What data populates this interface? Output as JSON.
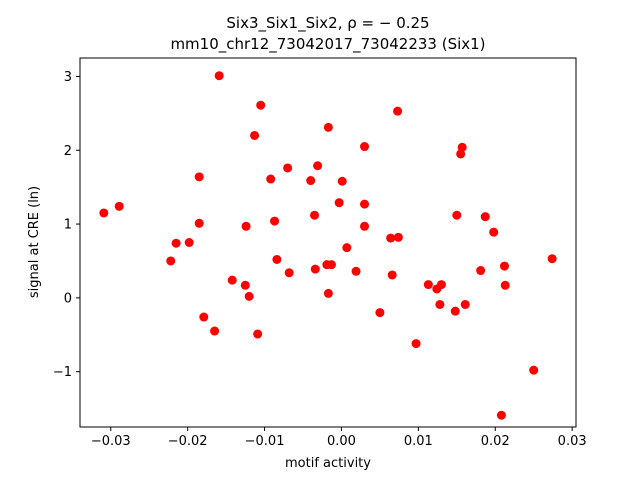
{
  "chart_data": {
    "type": "scatter",
    "title_line1": "Six3_Six1_Six2, ρ = − 0.25",
    "title_line2": "mm10_chr12_73042017_73042233 (Six1)",
    "xlabel": "motif activity",
    "ylabel": "signal at CRE (ln)",
    "xlim": [
      -0.034,
      0.0305
    ],
    "ylim": [
      -1.75,
      3.25
    ],
    "xticks": [
      -0.03,
      -0.02,
      -0.01,
      0.0,
      0.01,
      0.02,
      0.03
    ],
    "xtick_labels": [
      "−0.03",
      "−0.02",
      "−0.01",
      "0.00",
      "0.01",
      "0.02",
      "0.03"
    ],
    "yticks": [
      -1,
      0,
      1,
      2,
      3
    ],
    "ytick_labels": [
      "−1",
      "0",
      "1",
      "2",
      "3"
    ],
    "grid": false,
    "marker_color": "#ff0000",
    "points": [
      {
        "x": -0.0309,
        "y": 1.15
      },
      {
        "x": -0.0289,
        "y": 1.24
      },
      {
        "x": -0.0222,
        "y": 0.5
      },
      {
        "x": -0.0215,
        "y": 0.74
      },
      {
        "x": -0.0198,
        "y": 0.75
      },
      {
        "x": -0.0185,
        "y": 1.64
      },
      {
        "x": -0.0185,
        "y": 1.01
      },
      {
        "x": -0.0179,
        "y": -0.26
      },
      {
        "x": -0.0165,
        "y": -0.45
      },
      {
        "x": -0.0159,
        "y": 3.01
      },
      {
        "x": -0.0142,
        "y": 0.24
      },
      {
        "x": -0.0125,
        "y": 0.17
      },
      {
        "x": -0.0124,
        "y": 0.97
      },
      {
        "x": -0.012,
        "y": 0.02
      },
      {
        "x": -0.0113,
        "y": 2.2
      },
      {
        "x": -0.0109,
        "y": -0.49
      },
      {
        "x": -0.0105,
        "y": 2.61
      },
      {
        "x": -0.0092,
        "y": 1.61
      },
      {
        "x": -0.0087,
        "y": 1.04
      },
      {
        "x": -0.0084,
        "y": 0.52
      },
      {
        "x": -0.007,
        "y": 1.76
      },
      {
        "x": -0.0068,
        "y": 0.34
      },
      {
        "x": -0.004,
        "y": 1.59
      },
      {
        "x": -0.0035,
        "y": 1.12
      },
      {
        "x": -0.0034,
        "y": 0.39
      },
      {
        "x": -0.0031,
        "y": 1.79
      },
      {
        "x": -0.0019,
        "y": 0.45
      },
      {
        "x": -0.0017,
        "y": 2.31
      },
      {
        "x": -0.0017,
        "y": 0.06
      },
      {
        "x": -0.0013,
        "y": 0.45
      },
      {
        "x": -0.0003,
        "y": 1.29
      },
      {
        "x": 0.0001,
        "y": 1.58
      },
      {
        "x": 0.0007,
        "y": 0.68
      },
      {
        "x": 0.0019,
        "y": 0.36
      },
      {
        "x": 0.003,
        "y": 2.05
      },
      {
        "x": 0.003,
        "y": 1.27
      },
      {
        "x": 0.003,
        "y": 0.97
      },
      {
        "x": 0.005,
        "y": -0.2
      },
      {
        "x": 0.0064,
        "y": 0.81
      },
      {
        "x": 0.0066,
        "y": 0.31
      },
      {
        "x": 0.0073,
        "y": 2.53
      },
      {
        "x": 0.0074,
        "y": 0.82
      },
      {
        "x": 0.0097,
        "y": -0.62
      },
      {
        "x": 0.0113,
        "y": 0.18
      },
      {
        "x": 0.0124,
        "y": 0.12
      },
      {
        "x": 0.0128,
        "y": -0.09
      },
      {
        "x": 0.013,
        "y": 0.18
      },
      {
        "x": 0.0148,
        "y": -0.18
      },
      {
        "x": 0.015,
        "y": 1.12
      },
      {
        "x": 0.0155,
        "y": 1.95
      },
      {
        "x": 0.0157,
        "y": 2.04
      },
      {
        "x": 0.0161,
        "y": -0.09
      },
      {
        "x": 0.0181,
        "y": 0.37
      },
      {
        "x": 0.0187,
        "y": 1.1
      },
      {
        "x": 0.0198,
        "y": 0.89
      },
      {
        "x": 0.0208,
        "y": -1.59
      },
      {
        "x": 0.0212,
        "y": 0.43
      },
      {
        "x": 0.0213,
        "y": 0.17
      },
      {
        "x": 0.025,
        "y": -0.98
      },
      {
        "x": 0.0274,
        "y": 0.53
      }
    ]
  }
}
